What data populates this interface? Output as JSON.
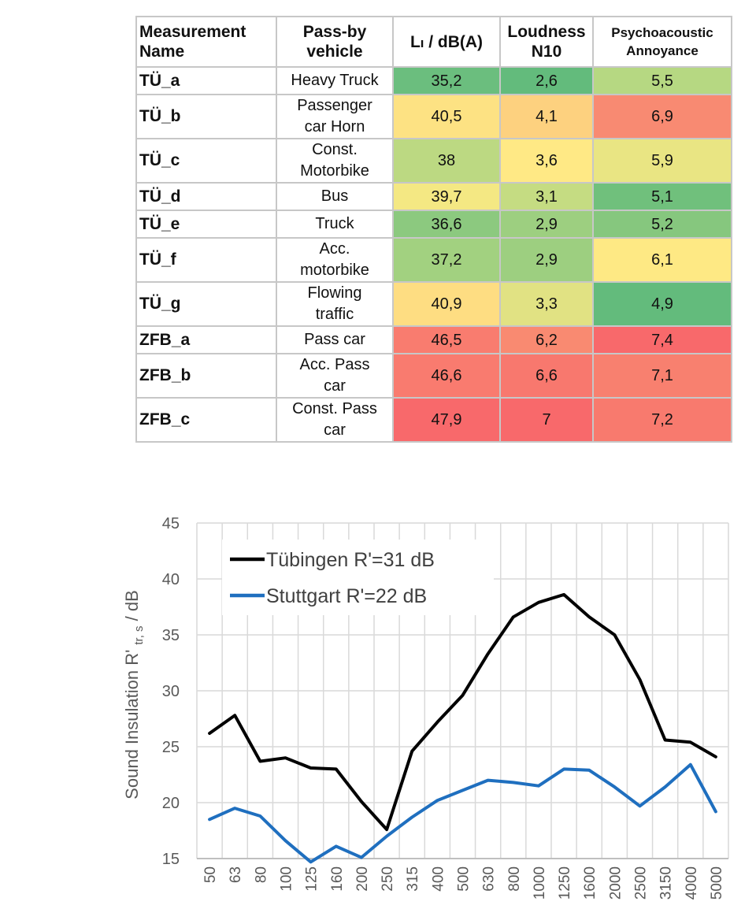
{
  "table": {
    "headers": {
      "name": [
        "Measurement",
        "Name"
      ],
      "vehicle": [
        "Pass-by",
        "vehicle"
      ],
      "level": "Lₗ / dB(A)",
      "loudness": [
        "Loudness",
        "N10"
      ],
      "annoyance": [
        "Psychoacoustic",
        "Annoyance"
      ]
    },
    "rows": [
      {
        "name": "TÜ_a",
        "vehicle": [
          "Heavy Truck"
        ],
        "level": "35,2",
        "loudness": "2,6",
        "annoyance": "5,5",
        "colors": [
          "#6bbe7e",
          "#63bb7c",
          "#b6d882"
        ]
      },
      {
        "name": "TÜ_b",
        "vehicle": [
          "Passenger",
          "car Horn"
        ],
        "level": "40,5",
        "loudness": "4,1",
        "annoyance": "6,9",
        "colors": [
          "#fde283",
          "#fdd17f",
          "#f88a72"
        ]
      },
      {
        "name": "TÜ_c",
        "vehicle": [
          "Const.",
          "Motorbike"
        ],
        "level": "38",
        "loudness": "3,6",
        "annoyance": "5,9",
        "colors": [
          "#bcd982",
          "#ffe985",
          "#e9e583"
        ]
      },
      {
        "name": "TÜ_d",
        "vehicle": [
          "Bus"
        ],
        "level": "39,7",
        "loudness": "3,1",
        "annoyance": "5,1",
        "colors": [
          "#f4e883",
          "#c5dc82",
          "#70c07c"
        ]
      },
      {
        "name": "TÜ_e",
        "vehicle": [
          "Truck"
        ],
        "level": "36,6",
        "loudness": "2,9",
        "annoyance": "5,2",
        "colors": [
          "#8cc97f",
          "#9dcf80",
          "#86c77e"
        ]
      },
      {
        "name": "TÜ_f",
        "vehicle": [
          "Acc.",
          "motorbike"
        ],
        "level": "37,2",
        "loudness": "2,9",
        "annoyance": "6,1",
        "colors": [
          "#a2d180",
          "#9dcf80",
          "#fee984"
        ]
      },
      {
        "name": "TÜ_g",
        "vehicle": [
          "Flowing",
          "traffic"
        ],
        "level": "40,9",
        "loudness": "3,3",
        "annoyance": "4,9",
        "colors": [
          "#fedd82",
          "#e1e283",
          "#63bb7c"
        ]
      },
      {
        "name": "ZFB_a",
        "vehicle": [
          "Pass car"
        ],
        "level": "46,5",
        "loudness": "6,2",
        "annoyance": "7,4",
        "colors": [
          "#f97c6f",
          "#f98a71",
          "#f8696b"
        ]
      },
      {
        "name": "ZFB_b",
        "vehicle": [
          "Acc. Pass",
          "car"
        ],
        "level": "46,6",
        "loudness": "6,6",
        "annoyance": "7,1",
        "colors": [
          "#f97b6f",
          "#f8786e",
          "#f8806f"
        ]
      },
      {
        "name": "ZFB_c",
        "vehicle": [
          "Const. Pass",
          "car"
        ],
        "level": "47,9",
        "loudness": "7",
        "annoyance": "7,2",
        "colors": [
          "#f8696b",
          "#f8696b",
          "#f87a6e"
        ]
      }
    ]
  },
  "chart_data": {
    "type": "line",
    "categories": [
      "50",
      "63",
      "80",
      "100",
      "125",
      "160",
      "200",
      "250",
      "315",
      "400",
      "500",
      "630",
      "800",
      "1000",
      "1250",
      "1600",
      "2000",
      "2500",
      "3150",
      "4000",
      "5000"
    ],
    "series": [
      {
        "name": "Tübingen R'=31 dB",
        "color": "#000000",
        "values": [
          26.2,
          27.8,
          23.7,
          24.0,
          23.1,
          23.0,
          20.1,
          17.6,
          24.6,
          27.2,
          29.6,
          33.3,
          36.6,
          37.9,
          38.6,
          36.6,
          35.0,
          31.0,
          25.6,
          25.4,
          24.1
        ]
      },
      {
        "name": "Stuttgart R'=22 dB",
        "color": "#1f6fbf",
        "values": [
          18.5,
          19.5,
          18.8,
          16.6,
          14.7,
          16.1,
          15.1,
          17.0,
          18.7,
          20.2,
          21.1,
          22.0,
          21.8,
          21.5,
          23.0,
          22.9,
          21.4,
          19.7,
          21.4,
          23.4,
          19.2
        ]
      }
    ],
    "ylabel": "Sound Insulation R' tr, s / dB",
    "ylabel_main": "Sound Insulation R'",
    "ylabel_sub": "tr, s",
    "ylabel_tail": " / dB",
    "xlabel": "",
    "ylim": [
      15,
      45
    ],
    "yticks": [
      "15",
      "20",
      "25",
      "30",
      "35",
      "40",
      "45"
    ],
    "grid": true,
    "legend": "top-left"
  }
}
